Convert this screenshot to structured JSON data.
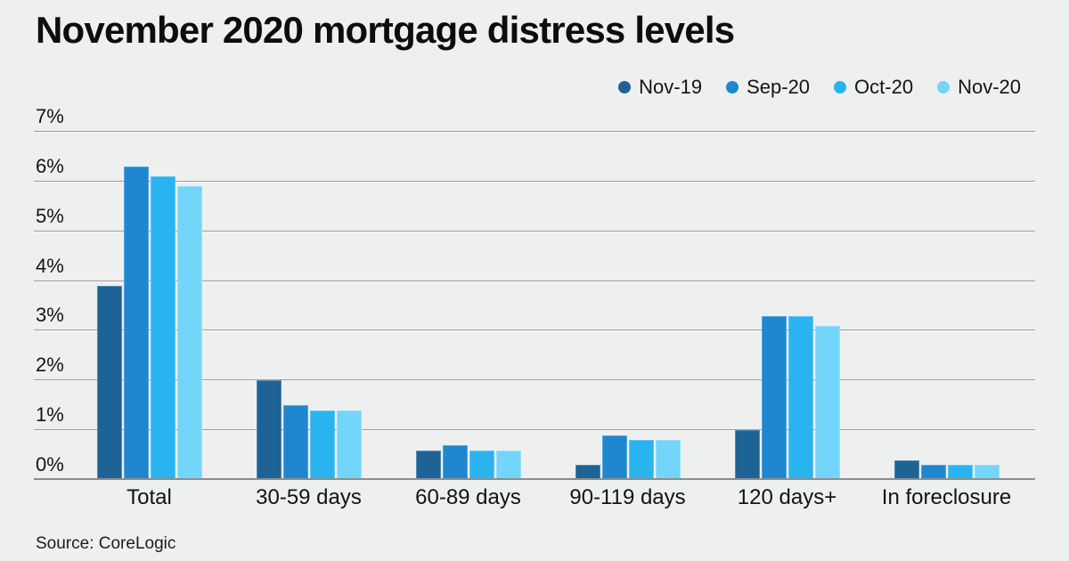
{
  "title": "November 2020 mortgage distress levels",
  "source": "Source: CoreLogic",
  "colors": {
    "background": "#eef0ef",
    "gridline": "#9c9c9c",
    "axis_line": "#8d8d8d",
    "text": "#131313"
  },
  "chart_data": {
    "type": "bar",
    "title": "November 2020 mortgage distress levels",
    "categories": [
      "Total",
      "30-59 days",
      "60-89 days",
      "90-119 days",
      "120 days+",
      "In foreclosure"
    ],
    "series": [
      {
        "name": "Nov-19",
        "color": "#1d6396",
        "values": [
          3.9,
          2.0,
          0.6,
          0.3,
          1.0,
          0.4
        ]
      },
      {
        "name": "Sep-20",
        "color": "#1e87d0",
        "values": [
          6.3,
          1.5,
          0.7,
          0.9,
          3.3,
          0.3
        ]
      },
      {
        "name": "Oct-20",
        "color": "#29b4f0",
        "values": [
          6.1,
          1.4,
          0.6,
          0.8,
          3.3,
          0.3
        ]
      },
      {
        "name": "Nov-20",
        "color": "#73d5fa",
        "values": [
          5.9,
          1.4,
          0.6,
          0.8,
          3.1,
          0.3
        ]
      }
    ],
    "xlabel": "",
    "ylabel": "",
    "ylim": [
      0,
      7
    ],
    "yticks": [
      0,
      1,
      2,
      3,
      4,
      5,
      6,
      7
    ],
    "ytick_format": "{v}%",
    "grid": true,
    "legend_position": "top-right",
    "source": "Source: CoreLogic"
  }
}
